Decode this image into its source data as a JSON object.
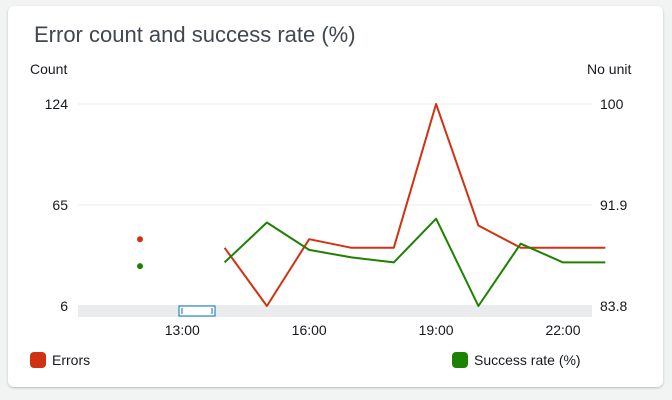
{
  "widget": {
    "title": "Error count and success rate (%)",
    "left_axis_unit": "Count",
    "right_axis_unit": "No unit"
  },
  "legend": [
    {
      "label": "Errors",
      "color": "#d13212"
    },
    {
      "label": "Success rate (%)",
      "color": "#1d8102"
    }
  ],
  "chart_data": {
    "type": "line",
    "title": "Error count and success rate (%)",
    "x": [
      "12:00",
      "13:00",
      "14:00",
      "15:00",
      "16:00",
      "17:00",
      "18:00",
      "19:00",
      "20:00",
      "21:00",
      "22:00",
      "23:00"
    ],
    "x_ticks": [
      "13:00",
      "16:00",
      "19:00",
      "22:00"
    ],
    "y_left": {
      "label": "Count",
      "ticks": [
        "124",
        "65",
        "6"
      ],
      "range": [
        6,
        124
      ]
    },
    "y_right": {
      "label": "No unit",
      "ticks": [
        "100",
        "91.9",
        "83.8"
      ],
      "range": [
        83.8,
        100
      ]
    },
    "series": [
      {
        "name": "Errors",
        "axis": "left",
        "color": "#d13212",
        "values": [
          45,
          null,
          40,
          6,
          45,
          40,
          40,
          124,
          53,
          40,
          40,
          40
        ]
      },
      {
        "name": "Success rate (%)",
        "axis": "right",
        "color": "#1d8102",
        "values": [
          87.0,
          null,
          87.3,
          90.5,
          88.3,
          87.7,
          87.3,
          90.8,
          83.8,
          88.8,
          87.3,
          87.3
        ]
      }
    ],
    "grid": "horizontal",
    "legend_position": "bottom"
  }
}
